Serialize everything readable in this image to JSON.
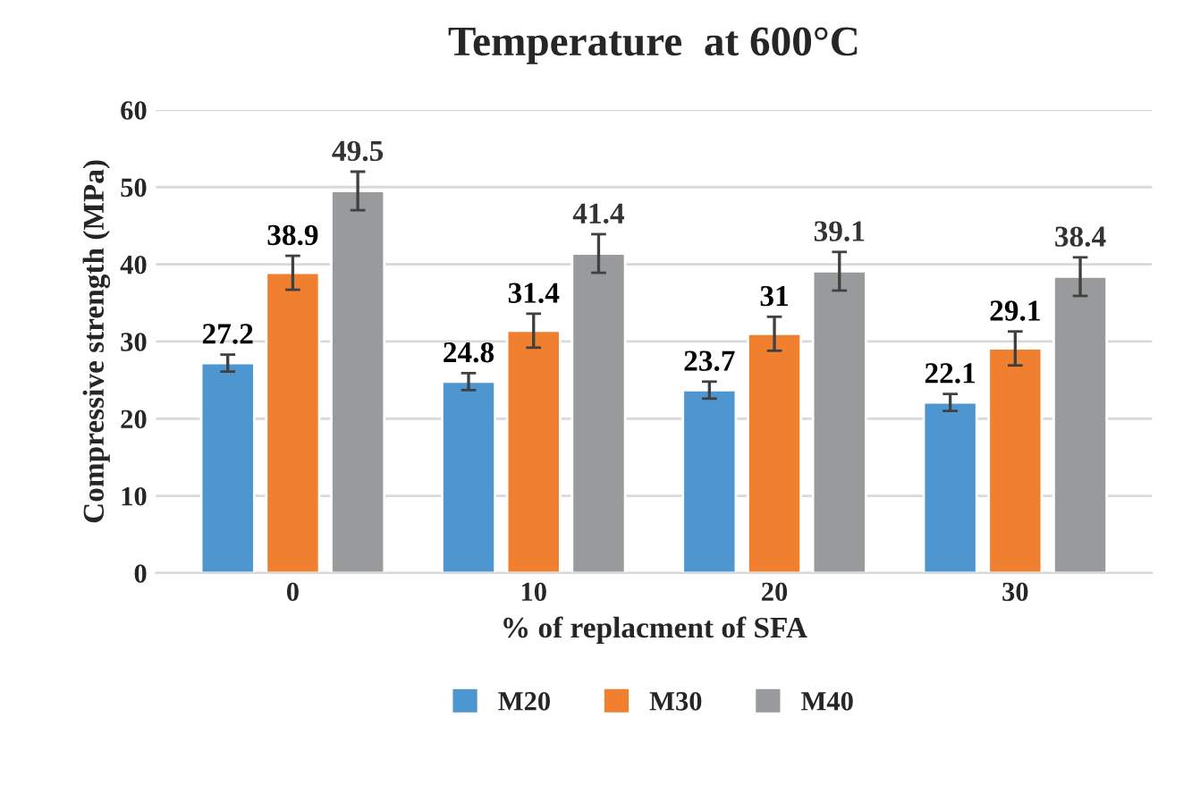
{
  "chart_data": {
    "type": "bar",
    "title": "Temperature  at 600°C",
    "xlabel": "% of replacment of SFA",
    "ylabel": "Compressive strength (MPa)",
    "categories": [
      "0",
      "10",
      "20",
      "30"
    ],
    "series": [
      {
        "name": "M20",
        "color": "#4e96d0",
        "values": [
          27.2,
          24.8,
          23.7,
          22.1
        ],
        "errors": [
          1.1,
          1.1,
          1.1,
          1.1
        ]
      },
      {
        "name": "M30",
        "color": "#f08030",
        "values": [
          38.9,
          31.4,
          31,
          29.1
        ],
        "errors": [
          2.2,
          2.2,
          2.2,
          2.2
        ]
      },
      {
        "name": "M40",
        "color": "#989a9b",
        "values": [
          49.5,
          41.4,
          39.1,
          38.4
        ],
        "errors": [
          2.5,
          2.5,
          2.5,
          2.5
        ]
      }
    ],
    "ylim": [
      0,
      60
    ],
    "yticks": [
      0,
      10,
      20,
      30,
      40,
      50,
      60
    ],
    "grid": "y",
    "legend": "bottom",
    "data_labels": true
  }
}
